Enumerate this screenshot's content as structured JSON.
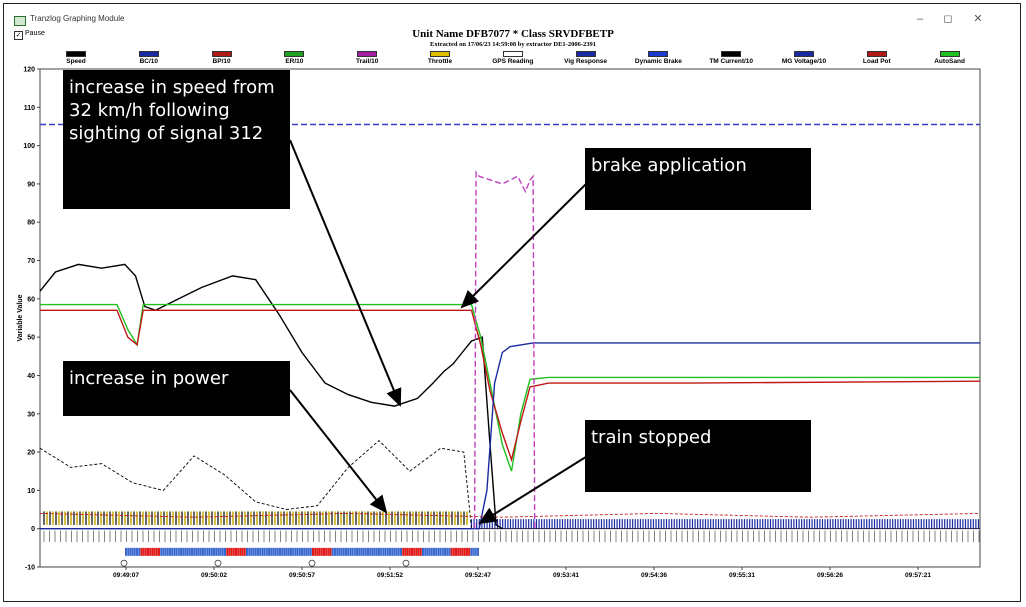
{
  "window": {
    "title": "Tranzlog Graphing Module",
    "pause_label": "Pause",
    "minimize": "–",
    "maximize": "◻",
    "close": "✕"
  },
  "header": {
    "unit_title": "Unit Name DFB7077  * Class  SRVDFBETP",
    "extracted": "Extracted on 17/06/23 14:59:08  by extractor DE1-2006-2391"
  },
  "legend": [
    {
      "label": "Speed",
      "color": "#000000"
    },
    {
      "label": "BC/10",
      "color": "#1a2aa0"
    },
    {
      "label": "BP/10",
      "color": "#b01818"
    },
    {
      "label": "ER/10",
      "color": "#20a020"
    },
    {
      "label": "Trail/10",
      "color": "#a020a0"
    },
    {
      "label": "Throttle",
      "color": "#e0c000"
    },
    {
      "label": "GPS Reading",
      "color": "#ffffff"
    },
    {
      "label": "Vig Response",
      "color": "#1a2aa0"
    },
    {
      "label": "Dynamic Brake",
      "color": "#1a3ad0"
    },
    {
      "label": "TM Current/10",
      "color": "#000000"
    },
    {
      "label": "MG Voltage/10",
      "color": "#1a2aa0"
    },
    {
      "label": "Load Pot",
      "color": "#b01818"
    },
    {
      "label": "AutoSand",
      "color": "#20c020"
    }
  ],
  "chart_data": {
    "type": "line",
    "ylabel": "Variable Value",
    "ylim": [
      -10,
      120
    ],
    "yticks": [
      "-10",
      "0",
      "10",
      "20",
      "30",
      "40",
      "50",
      "60",
      "70",
      "80",
      "90",
      "100",
      "110",
      "120"
    ],
    "xticks": [
      "09:49:07",
      "09:50:02",
      "09:50:57",
      "09:51:52",
      "09:52:47",
      "09:53:41",
      "09:54:36",
      "09:55:31",
      "09:56:26",
      "09:57:21"
    ],
    "x_range_seconds": [
      0,
      610
    ],
    "series": [
      {
        "name": "Speed",
        "color": "#000000",
        "x": [
          0,
          10,
          25,
          40,
          55,
          62,
          68,
          75,
          90,
          105,
          125,
          140,
          155,
          170,
          185,
          200,
          215,
          230,
          245,
          255,
          262,
          268,
          274,
          280,
          287,
          292,
          296,
          300
        ],
        "y": [
          62,
          67,
          69,
          68,
          69,
          66,
          58,
          57,
          60,
          63,
          66,
          65,
          56,
          46,
          38,
          35,
          33,
          32,
          34,
          38,
          41,
          43,
          46,
          49,
          50,
          22,
          1,
          0
        ]
      },
      {
        "name": "ER/10",
        "color": "#20c020",
        "x": [
          0,
          50,
          57,
          63,
          67,
          72,
          280,
          286,
          292,
          300,
          306,
          312,
          318,
          330,
          420,
          610
        ],
        "y": [
          58.5,
          58.5,
          52,
          48,
          58.5,
          58.5,
          58.5,
          50,
          38,
          22,
          15,
          30,
          39,
          39.5,
          39.5,
          39.5
        ]
      },
      {
        "name": "BP/10",
        "color": "#c01818",
        "x": [
          0,
          50,
          57,
          63,
          67,
          72,
          280,
          286,
          292,
          300,
          306,
          312,
          318,
          330,
          420,
          610
        ],
        "y": [
          57,
          57,
          50,
          48,
          57,
          57,
          57,
          48,
          36,
          25,
          18,
          28,
          37,
          38,
          38,
          38.5
        ]
      },
      {
        "name": "BC/10",
        "color": "#1a2aa0",
        "x": [
          0,
          285,
          290,
          295,
          300,
          305,
          320,
          610
        ],
        "y": [
          0,
          0,
          10,
          38,
          46,
          47.5,
          48.5,
          48.5
        ]
      },
      {
        "name": "MG Voltage/10",
        "color": "#3a3ad0",
        "x": [
          0,
          610
        ],
        "y": [
          105.5,
          105.5
        ]
      },
      {
        "name": "TM Current/10",
        "color": "#000000",
        "x": [
          0,
          20,
          40,
          60,
          80,
          100,
          120,
          140,
          160,
          180,
          200,
          220,
          240,
          260,
          275,
          280
        ],
        "y": [
          21,
          16,
          17,
          12,
          10,
          19,
          14,
          7,
          5,
          6,
          16,
          23,
          15,
          21,
          20,
          0
        ]
      },
      {
        "name": "Load Pot",
        "color": "#c01818",
        "x": [
          0,
          100,
          200,
          300,
          400,
          500,
          610
        ],
        "y": [
          4,
          3,
          4,
          3,
          4,
          3,
          4
        ]
      },
      {
        "name": "Trail/10",
        "color": "#c040c0",
        "x": [
          282,
          283,
          285,
          300,
          310,
          315,
          318,
          320,
          321
        ],
        "y": [
          0,
          93,
          92,
          90,
          92,
          88,
          91,
          92,
          0
        ]
      }
    ],
    "annotations": [
      {
        "text": "increase in speed from 32 km/h following sighting of signal 312"
      },
      {
        "text": "brake application"
      },
      {
        "text": "increase in power"
      },
      {
        "text": "train stopped"
      }
    ]
  }
}
